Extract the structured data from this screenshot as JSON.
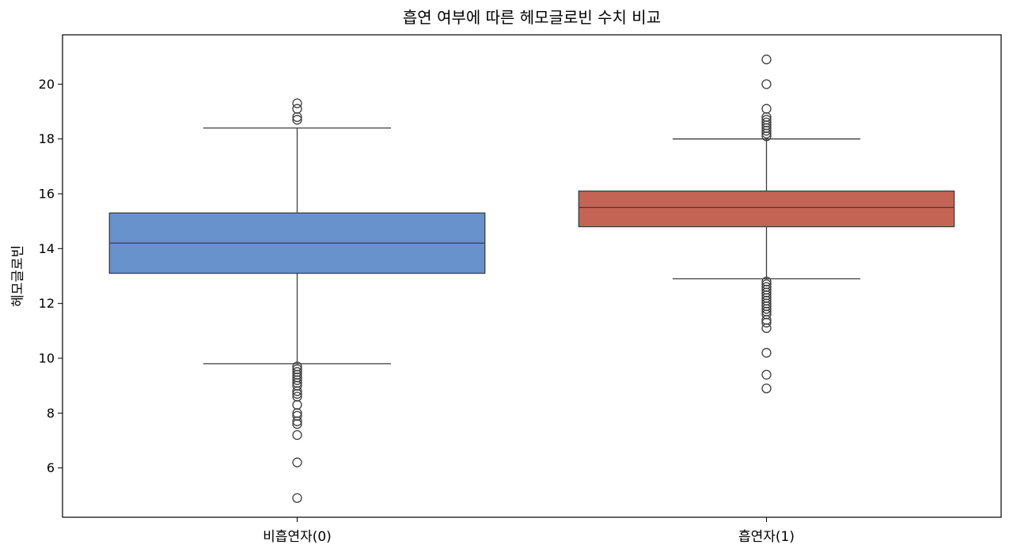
{
  "chart_data": {
    "type": "box",
    "title": "흡연 여부에 따른 헤모글로빈 수치 비교",
    "xlabel": "",
    "ylabel": "헤모글로빈",
    "ylim": [
      4.2,
      21.8
    ],
    "yticks": [
      6,
      8,
      10,
      12,
      14,
      16,
      18,
      20
    ],
    "grid": false,
    "categories": [
      "비흡연자(0)",
      "흡연자(1)"
    ],
    "series": [
      {
        "category": "비흡연자(0)",
        "color": "#6892CC",
        "whisker_low": 9.8,
        "q1": 13.1,
        "median": 14.2,
        "q3": 15.3,
        "whisker_high": 18.4,
        "outliers": [
          19.3,
          19.1,
          18.8,
          18.7,
          9.7,
          9.6,
          9.5,
          9.4,
          9.3,
          9.2,
          9.1,
          9.0,
          8.8,
          8.7,
          8.6,
          8.3,
          8.0,
          7.9,
          7.7,
          7.6,
          7.2,
          6.2,
          4.9
        ]
      },
      {
        "category": "흡연자(1)",
        "color": "#C46455",
        "whisker_low": 12.9,
        "q1": 14.8,
        "median": 15.5,
        "q3": 16.1,
        "whisker_high": 18.0,
        "outliers": [
          20.9,
          20.0,
          19.1,
          18.8,
          18.7,
          18.6,
          18.5,
          18.4,
          18.3,
          18.2,
          18.1,
          12.8,
          12.7,
          12.6,
          12.5,
          12.4,
          12.3,
          12.2,
          12.1,
          12.0,
          11.9,
          11.8,
          11.7,
          11.6,
          11.4,
          11.3,
          11.1,
          10.2,
          9.4,
          8.9
        ]
      }
    ]
  }
}
